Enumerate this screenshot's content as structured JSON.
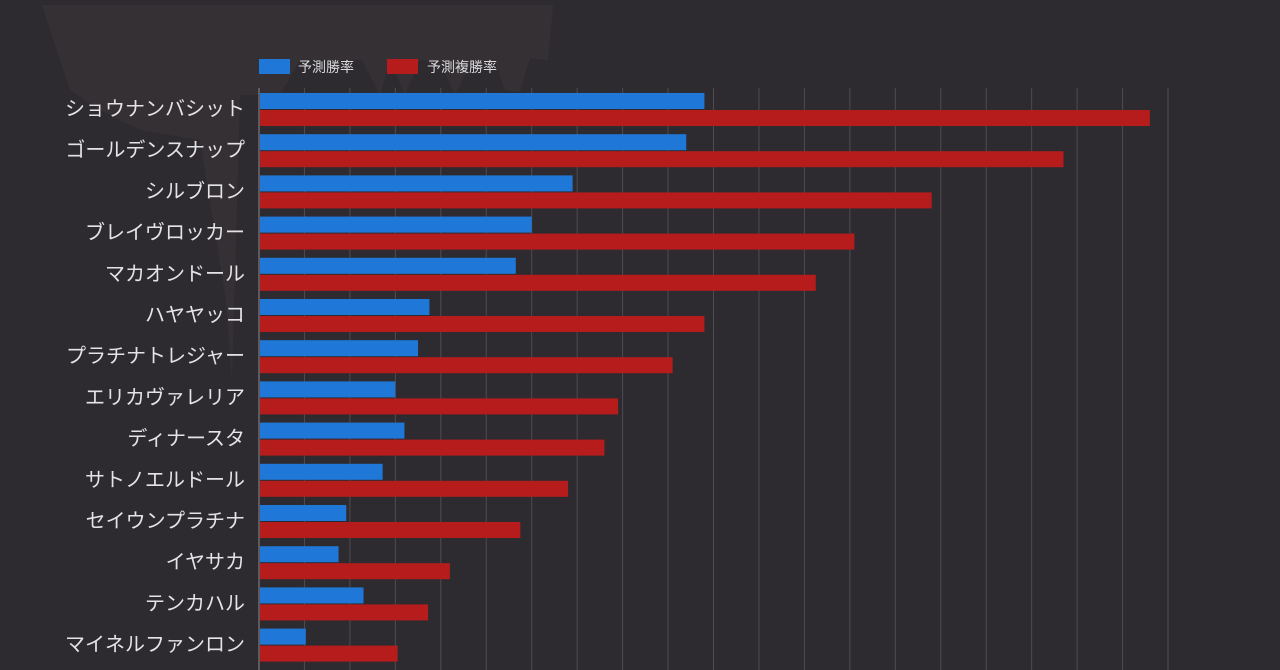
{
  "colors": {
    "background": "#2e2b30",
    "series_win": "#1f78d8",
    "series_place": "#b71c1c",
    "grid": "#4e4b52",
    "text": "#e4e4e6"
  },
  "chart_data": {
    "type": "bar",
    "orientation": "horizontal",
    "title": "",
    "xlabel": "",
    "ylabel": "",
    "xlim": [
      0,
      20
    ],
    "grid": true,
    "legend_position": "top-left",
    "categories": [
      "ショウナンバシット",
      "ゴールデンスナップ",
      "シルブロン",
      "ブレイヴロッカー",
      "マカオンドール",
      "ハヤヤッコ",
      "プラチナトレジャー",
      "エリカヴァレリア",
      "ディナースタ",
      "サトノエルドール",
      "セイウンプラチナ",
      "イヤサカ",
      "テンカハル",
      "マイネルファンロン"
    ],
    "series": [
      {
        "name": "予測勝率",
        "color": "#1f78d8",
        "values": [
          9.8,
          9.4,
          6.9,
          6.0,
          5.65,
          3.75,
          3.5,
          3.0,
          3.2,
          2.72,
          1.92,
          1.75,
          2.3,
          1.03
        ]
      },
      {
        "name": "予測複勝率",
        "color": "#b71c1c",
        "values": [
          19.6,
          17.7,
          14.8,
          13.1,
          12.25,
          9.8,
          9.1,
          7.9,
          7.6,
          6.8,
          5.75,
          4.2,
          3.72,
          3.05
        ]
      }
    ]
  }
}
